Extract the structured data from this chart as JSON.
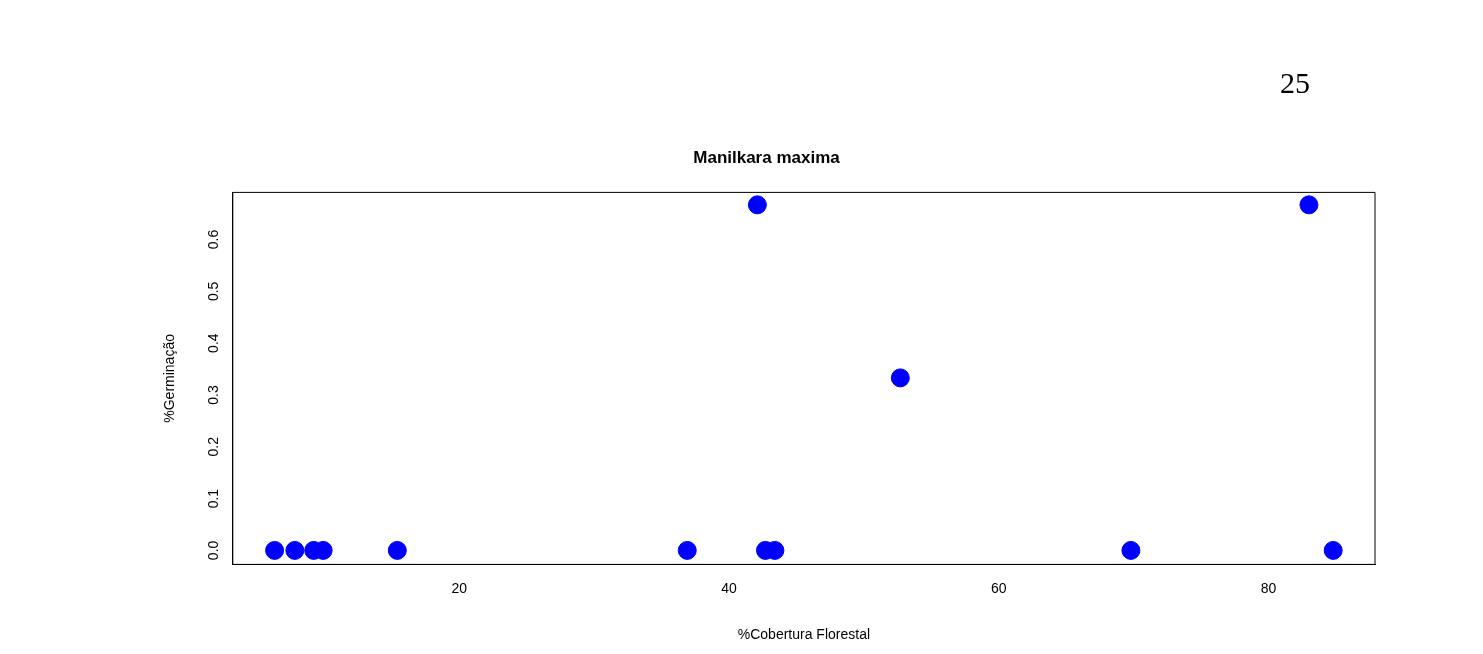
{
  "chart_data": {
    "type": "scatter",
    "title": "Manilkara maxima",
    "xlabel": "%Cobertura Florestal",
    "ylabel": "%Germinação",
    "annotations": [
      "25"
    ],
    "series": [
      {
        "color": "#0000ff",
        "x": [
          6.3,
          7.8,
          9.2,
          9.9,
          15.4,
          36.9,
          42.1,
          42.7,
          43.4,
          52.7,
          69.8,
          83.0,
          84.8
        ],
        "values": [
          0,
          0,
          0,
          0,
          0,
          0,
          0.667,
          0,
          0,
          0.333,
          0,
          0.667,
          0
        ]
      }
    ],
    "xlim": [
      3.2,
      87.9
    ],
    "xticks": [
      20,
      40,
      60,
      80
    ],
    "ylim": [
      -0.027,
      0.691
    ],
    "yticks": [
      {
        "value": 0,
        "label": "0.0"
      },
      {
        "value": 0.1,
        "label": "0.1"
      },
      {
        "value": 0.2,
        "label": "0.2"
      },
      {
        "value": 0.3,
        "label": "0.3"
      },
      {
        "value": 0.4,
        "label": "0.4"
      },
      {
        "value": 0.5,
        "label": "0.5"
      },
      {
        "value": 0.6,
        "label": "0.6"
      }
    ],
    "marker": "circle",
    "grid": false,
    "legend": false
  }
}
